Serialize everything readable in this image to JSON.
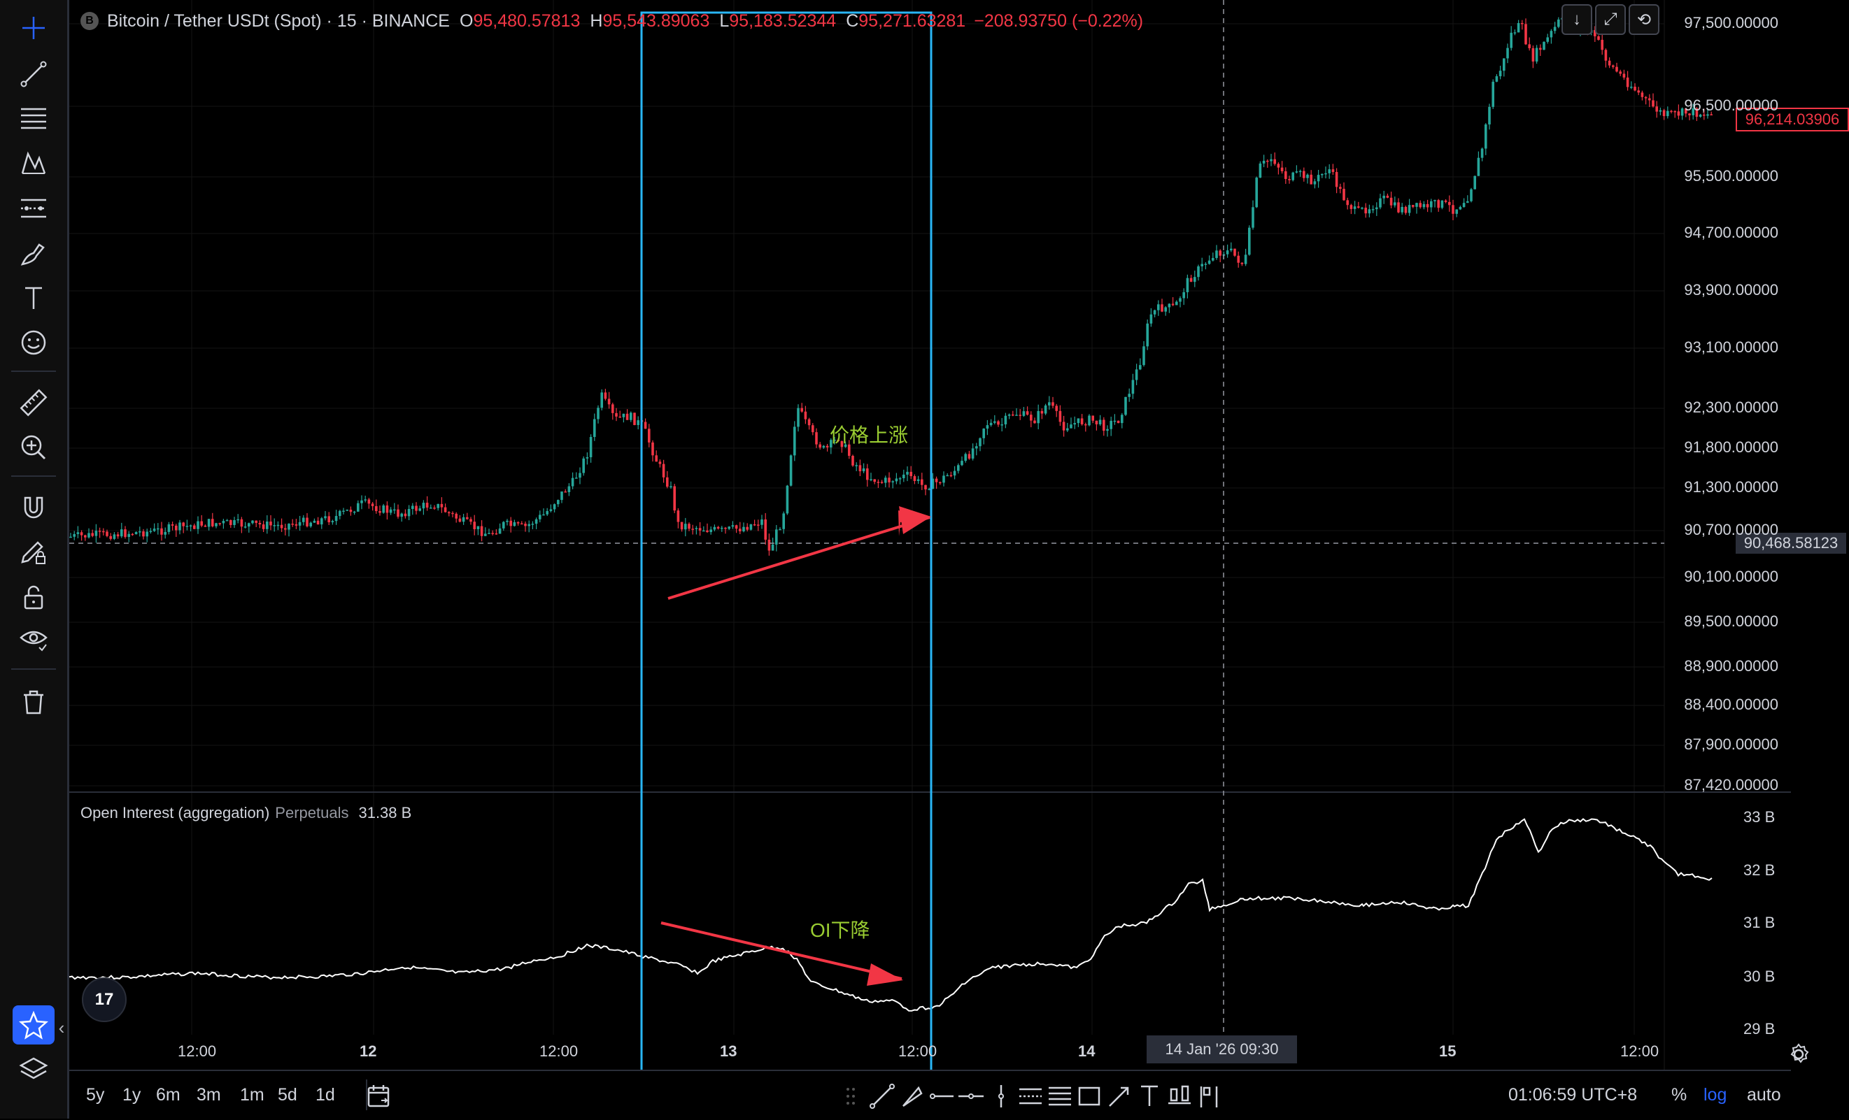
{
  "symbol": {
    "title": "Bitcoin / Tether USDt (Spot) · 15 · BINANCE",
    "logo_letter": "B",
    "open_key": "O",
    "open": "95,480.57813",
    "high_key": "H",
    "high": "95,543.89063",
    "low_key": "L",
    "low": "95,183.52344",
    "close_key": "C",
    "close": "95,271.63281",
    "change": "−208.93750 (−0.22%)"
  },
  "price_axis": [
    "97,500.00000",
    "96,500.00000",
    "95,500.00000",
    "94,700.00000",
    "93,900.00000",
    "93,100.00000",
    "92,300.00000",
    "91,800.00000",
    "91,300.00000",
    "90,700.00000",
    "90,100.00000",
    "89,500.00000",
    "88,900.00000",
    "88,400.00000",
    "87,900.00000",
    "87,420.00000"
  ],
  "current_price": "96,214.03906",
  "crosshair_price": "90,468.58123",
  "oi_axis": [
    "33 B",
    "32 B",
    "31 B",
    "30 B",
    "29 B"
  ],
  "oi_legend": {
    "name": "Open Interest (aggregation)",
    "type": "Perpetuals",
    "value": "31.38 B"
  },
  "time_axis": [
    "12:00",
    "12",
    "12:00",
    "13",
    "12:00",
    "14",
    "15",
    "12:00"
  ],
  "crosshair_time": "14 Jan '26   09:30",
  "annotations": {
    "price_up": "价格上涨",
    "oi_down": "OI下降"
  },
  "tv_logo": "17",
  "ranges": [
    "5y",
    "1y",
    "6m",
    "3m",
    "1m",
    "5d",
    "1d"
  ],
  "clock": "01:06:59 UTC+8",
  "scale_buttons": {
    "percent": "%",
    "log": "log",
    "auto": "auto"
  },
  "colors": {
    "up": "#26a69a",
    "down": "#f23645",
    "highlight_box": "#29b6f6",
    "arrow": "#f23645",
    "annotation": "#9acd32",
    "log_active": "#2962ff"
  },
  "left_tools": [
    "crosshair-icon",
    "trend-line-icon",
    "fib-icon",
    "pattern-icon",
    "prediction-icon",
    "brush-icon",
    "text-icon",
    "emoji-icon",
    "ruler-icon",
    "zoom-in-icon",
    "magnet-icon",
    "lock-drawing-icon",
    "unlock-icon",
    "eye-icon",
    "trash-icon",
    "star-icon",
    "layers-icon"
  ],
  "draw_tools": [
    "drag-handle-icon",
    "trend-line-icon",
    "ray-icon",
    "horizontal-ray-icon",
    "horizontal-line-icon",
    "vertical-line-icon",
    "parallel-channel-icon",
    "fib-retracement-icon",
    "rectangle-icon",
    "arrow-icon",
    "text-icon",
    "long-position-icon",
    "short-position-icon"
  ],
  "top_buttons": [
    "download-icon",
    "fullscreen-icon",
    "refresh-icon"
  ]
}
